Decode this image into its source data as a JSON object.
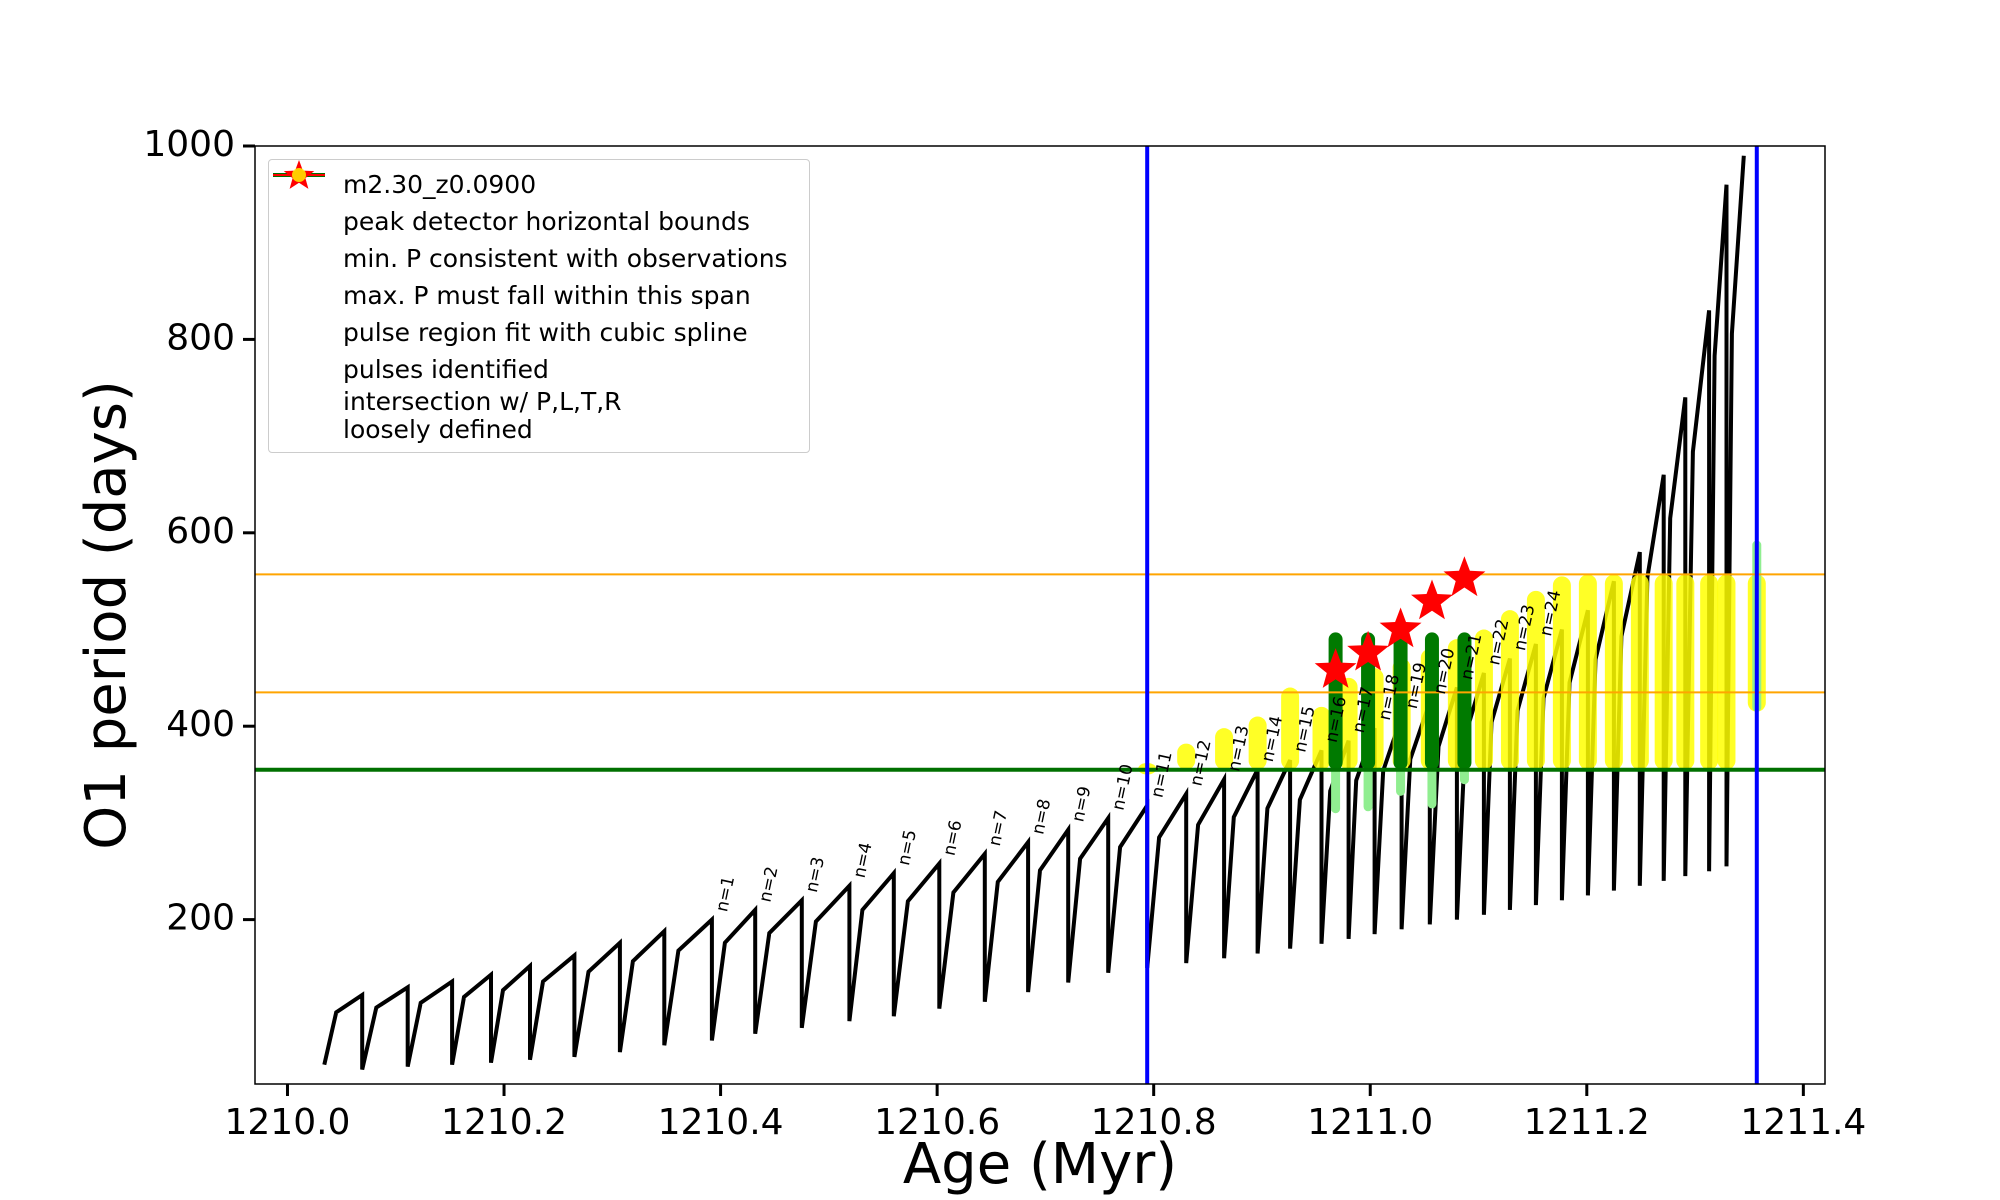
{
  "chart_data": {
    "type": "line",
    "x_label": "Age (Myr)",
    "y_label": "O1 period (days)",
    "xlim": [
      1209.97,
      1211.42
    ],
    "ylim": [
      30,
      1000
    ],
    "xticks": [
      {
        "value": 1210.0,
        "label": "1210.0"
      },
      1210.2,
      1210.4,
      1210.6,
      1210.8,
      {
        "value": 1211.0,
        "label": "1211.0"
      },
      1211.2,
      1211.4
    ],
    "yticks": [
      200,
      400,
      600,
      800,
      1000
    ],
    "legend": "upper left",
    "annotations": [
      "n=1",
      "n=2",
      "n=3",
      "n=4",
      "n=5",
      "n=6",
      "n=7",
      "n=8",
      "n=9",
      "n=10",
      "n=11",
      "n=12",
      "n=13",
      "n=14",
      "n=15",
      "n=16",
      "n=17",
      "n=18",
      "n=19",
      "n=20",
      "n=21",
      "n=22",
      "n=23",
      "n=24"
    ],
    "series": [
      {
        "name": "m2.30_z0.0900",
        "type": "line",
        "color": "#000000",
        "x": [
          1210.034,
          1210.045,
          1210.069,
          1210.069,
          1210.082,
          1210.111,
          1210.111,
          1210.123,
          1210.152,
          1210.152,
          1210.163,
          1210.188,
          1210.188,
          1210.199,
          1210.224,
          1210.224,
          1210.236,
          1210.265,
          1210.265,
          1210.278,
          1210.307,
          1210.307,
          1210.319,
          1210.348,
          1210.348,
          1210.361,
          1210.392,
          1210.392,
          1210.404,
          1210.432,
          1210.432,
          1210.445,
          1210.475,
          1210.475,
          1210.488,
          1210.519,
          1210.519,
          1210.531,
          1210.56,
          1210.56,
          1210.573,
          1210.602,
          1210.602,
          1210.615,
          1210.644,
          1210.644,
          1210.656,
          1210.684,
          1210.684,
          1210.695,
          1210.721,
          1210.721,
          1210.732,
          1210.758,
          1210.758,
          1210.769,
          1210.794,
          1210.794,
          1210.805,
          1210.83,
          1210.83,
          1210.841,
          1210.865,
          1210.865,
          1210.874,
          1210.896,
          1210.896,
          1210.905,
          1210.926,
          1210.926,
          1210.935,
          1210.955,
          1210.955,
          1210.963,
          1210.98,
          1210.98,
          1210.987,
          1211.004,
          1211.004,
          1211.012,
          1211.029,
          1211.029,
          1211.037,
          1211.055,
          1211.055,
          1211.063,
          1211.08,
          1211.08,
          1211.088,
          1211.105,
          1211.105,
          1211.112,
          1211.129,
          1211.129,
          1211.136,
          1211.153,
          1211.153,
          1211.16,
          1211.177,
          1211.177,
          1211.184,
          1211.201,
          1211.201,
          1211.208,
          1211.225,
          1211.225,
          1211.232,
          1211.249,
          1211.249,
          1211.256,
          1211.271,
          1211.271,
          1211.277,
          1211.291,
          1211.291,
          1211.298,
          1211.313,
          1211.313,
          1211.318,
          1211.329,
          1211.329,
          1211.334,
          1211.345
        ],
        "values": [
          50,
          104,
          122,
          45,
          109,
          130,
          48,
          114,
          136,
          50,
          120,
          143,
          52,
          127,
          152,
          55,
          136,
          163,
          58,
          146,
          176,
          63,
          157,
          188,
          70,
          168,
          200,
          75,
          176,
          210,
          82,
          186,
          220,
          88,
          198,
          235,
          95,
          210,
          248,
          100,
          219,
          258,
          108,
          228,
          268,
          115,
          239,
          280,
          125,
          251,
          293,
          135,
          263,
          305,
          145,
          275,
          318,
          150,
          285,
          330,
          155,
          298,
          345,
          160,
          306,
          355,
          165,
          315,
          365,
          170,
          324,
          375,
          175,
          333,
          385,
          180,
          344,
          398,
          185,
          354,
          410,
          190,
          366,
          425,
          195,
          379,
          440,
          200,
          391,
          455,
          205,
          404,
          470,
          210,
          416,
          485,
          215,
          429,
          500,
          220,
          445,
          520,
          225,
          469,
          550,
          230,
          493,
          580,
          235,
          554,
          660,
          240,
          615,
          740,
          245,
          684,
          830,
          250,
          783,
          960,
          255,
          806,
          990
        ]
      },
      {
        "name": "peak detector horizontal bounds",
        "type": "vline",
        "color": "#0000ff",
        "x": [
          1210.794,
          1211.357
        ]
      },
      {
        "name": "min. P consistent with observations",
        "type": "hline",
        "color": "#007000",
        "values": [
          355
        ]
      },
      {
        "name": "max. P must fall within this span",
        "type": "hline",
        "color": "#ffa500",
        "values": [
          435,
          557
        ]
      },
      {
        "name": "pulse region fit with cubic spline",
        "type": "range",
        "color": "#90ee90",
        "x": [
          1210.968,
          1210.998,
          1211.028,
          1211.057,
          1211.087,
          1211.357
        ],
        "low": [
          310,
          312,
          328,
          315,
          340,
          415
        ],
        "high": [
          360,
          360,
          360,
          360,
          360,
          592
        ]
      },
      {
        "name": "pulses identified",
        "type": "star",
        "color": "#ff0000",
        "x": [
          1210.968,
          1210.998,
          1211.028,
          1211.057,
          1211.087
        ],
        "values": [
          458,
          476,
          500,
          529,
          553
        ]
      },
      {
        "name": "intersection w/ P,L,T,R\nloosely defined",
        "type": "range",
        "color": "#ffff00",
        "x": [
          1210.794,
          1210.83,
          1210.865,
          1210.896,
          1210.926,
          1210.955,
          1210.98,
          1211.004,
          1211.029,
          1211.055,
          1211.08,
          1211.105,
          1211.129,
          1211.153,
          1211.177,
          1211.201,
          1211.225,
          1211.249,
          1211.271,
          1211.291,
          1211.313,
          1211.329,
          1211.357
        ],
        "low": [
          350,
          355,
          355,
          355,
          355,
          355,
          355,
          355,
          355,
          355,
          355,
          355,
          355,
          355,
          355,
          355,
          355,
          355,
          355,
          355,
          355,
          355,
          415
        ],
        "high": [
          362,
          382,
          398,
          410,
          440,
          420,
          450,
          460,
          470,
          480,
          490,
          500,
          520,
          540,
          555,
          557,
          557,
          557,
          557,
          557,
          557,
          557,
          557
        ]
      },
      {
        "type": "range",
        "color": "#007a00",
        "x": [
          1210.968,
          1210.998,
          1211.028,
          1211.057,
          1211.087
        ],
        "low": [
          355,
          355,
          355,
          355,
          355
        ],
        "high": [
          497,
          497,
          497,
          497,
          497
        ]
      }
    ]
  }
}
